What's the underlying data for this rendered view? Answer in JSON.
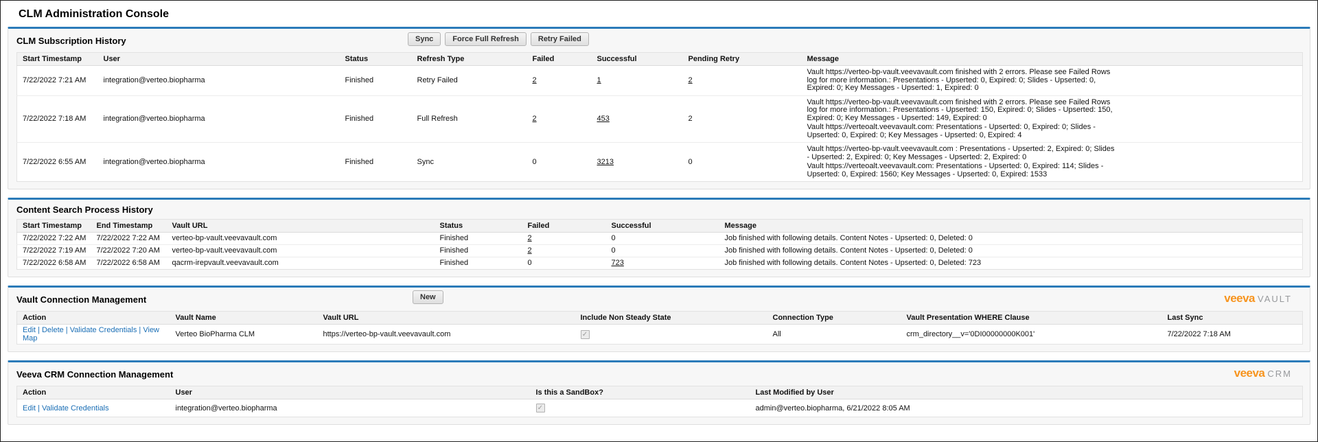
{
  "page": {
    "title": "CLM Administration Console"
  },
  "colors": {
    "accent_blue": "#2b7bb9",
    "link_blue": "#1a6eb5",
    "veeva_orange": "#F7941E",
    "logo_gray": "#97999C"
  },
  "panels": {
    "subscription": {
      "title": "CLM Subscription History",
      "buttons": {
        "sync": "Sync",
        "force_full_refresh": "Force Full Refresh",
        "retry_failed": "Retry Failed"
      },
      "columns": [
        "Start Timestamp",
        "User",
        "Status",
        "Refresh Type",
        "Failed",
        "Successful",
        "Pending Retry",
        "Message"
      ],
      "rows": [
        {
          "start_timestamp": "7/22/2022 7:21 AM",
          "user": "integration@verteo.biopharma",
          "status": "Finished",
          "refresh_type": "Retry Failed",
          "failed": {
            "value": "2",
            "link": true
          },
          "successful": {
            "value": "1",
            "link": true
          },
          "pending_retry": {
            "value": "2",
            "link": true
          },
          "message": [
            "Vault https://verteo-bp-vault.veevavault.com  finished with 2 errors. Please see Failed Rows log for more information.: Presentations - Upserted: 0, Expired: 0; Slides - Upserted: 0, Expired: 0; Key Messages - Upserted: 1, Expired: 0"
          ]
        },
        {
          "start_timestamp": "7/22/2022 7:18 AM",
          "user": "integration@verteo.biopharma",
          "status": "Finished",
          "refresh_type": "Full Refresh",
          "failed": {
            "value": "2",
            "link": true
          },
          "successful": {
            "value": "453",
            "link": true
          },
          "pending_retry": {
            "value": "2",
            "link": false
          },
          "message": [
            "Vault https://verteo-bp-vault.veevavault.com  finished with 2 errors. Please see Failed Rows log for more information.: Presentations - Upserted: 150, Expired: 0; Slides - Upserted: 150, Expired: 0; Key Messages - Upserted: 149, Expired: 0",
            "Vault https://verteoalt.veevavault.com: Presentations - Upserted: 0, Expired: 0; Slides - Upserted: 0, Expired: 0; Key Messages - Upserted: 0, Expired: 4"
          ]
        },
        {
          "start_timestamp": "7/22/2022 6:55 AM",
          "user": "integration@verteo.biopharma",
          "status": "Finished",
          "refresh_type": "Sync",
          "failed": {
            "value": "0",
            "link": false
          },
          "successful": {
            "value": "3213",
            "link": true
          },
          "pending_retry": {
            "value": "0",
            "link": false
          },
          "message": [
            "Vault https://verteo-bp-vault.veevavault.com : Presentations - Upserted: 2, Expired: 0; Slides - Upserted: 2, Expired: 0; Key Messages - Upserted: 2, Expired: 0",
            "Vault https://verteoalt.veevavault.com: Presentations - Upserted: 0, Expired: 114; Slides - Upserted: 0, Expired: 1560; Key Messages - Upserted: 0, Expired: 1533"
          ]
        }
      ]
    },
    "content_search": {
      "title": "Content Search Process History",
      "columns": [
        "Start Timestamp",
        "End Timestamp",
        "Vault URL",
        "Status",
        "Failed",
        "Successful",
        "Message"
      ],
      "rows": [
        {
          "start_timestamp": "7/22/2022 7:22 AM",
          "end_timestamp": "7/22/2022 7:22 AM",
          "vault_url": "verteo-bp-vault.veevavault.com",
          "status": "Finished",
          "failed": {
            "value": "2",
            "link": true
          },
          "successful": {
            "value": "0",
            "link": false
          },
          "message": "Job finished with following details. Content Notes - Upserted: 0, Deleted: 0"
        },
        {
          "start_timestamp": "7/22/2022 7:19 AM",
          "end_timestamp": "7/22/2022 7:20 AM",
          "vault_url": "verteo-bp-vault.veevavault.com",
          "status": "Finished",
          "failed": {
            "value": "2",
            "link": true
          },
          "successful": {
            "value": "0",
            "link": false
          },
          "message": "Job finished with following details. Content Notes - Upserted: 0, Deleted: 0"
        },
        {
          "start_timestamp": "7/22/2022 6:58 AM",
          "end_timestamp": "7/22/2022 6:58 AM",
          "vault_url": "qacrm-irepvault.veevavault.com",
          "status": "Finished",
          "failed": {
            "value": "0",
            "link": false
          },
          "successful": {
            "value": "723",
            "link": true
          },
          "message": "Job finished with following details. Content Notes - Upserted: 0, Deleted: 723"
        }
      ]
    },
    "vault_connection": {
      "title": "Vault Connection Management",
      "new_button": "New",
      "logo": {
        "brand": "veeva",
        "product": "VAULT"
      },
      "columns": [
        "Action",
        "Vault Name",
        "Vault URL",
        "Include Non Steady State",
        "Connection Type",
        "Vault Presentation WHERE Clause",
        "Last Sync"
      ],
      "rows": [
        {
          "actions": [
            "Edit",
            "Delete",
            "Validate Credentials",
            "View Map"
          ],
          "vault_name": "Verteo BioPharma CLM",
          "vault_url": "https://verteo-bp-vault.veevavault.com",
          "include_non_steady_state": true,
          "connection_type": "All",
          "where_clause": "crm_directory__v='0DI00000000K001'",
          "last_sync": "7/22/2022 7:18 AM"
        }
      ]
    },
    "crm_connection": {
      "title": "Veeva CRM Connection Management",
      "logo": {
        "brand": "veeva",
        "product": "CRM"
      },
      "columns": [
        "Action",
        "User",
        "Is this a SandBox?",
        "Last Modified by User"
      ],
      "rows": [
        {
          "actions": [
            "Edit",
            "Validate Credentials"
          ],
          "user": "integration@verteo.biopharma",
          "is_sandbox": true,
          "last_modified": "admin@verteo.biopharma, 6/21/2022 8:05 AM"
        }
      ]
    }
  }
}
